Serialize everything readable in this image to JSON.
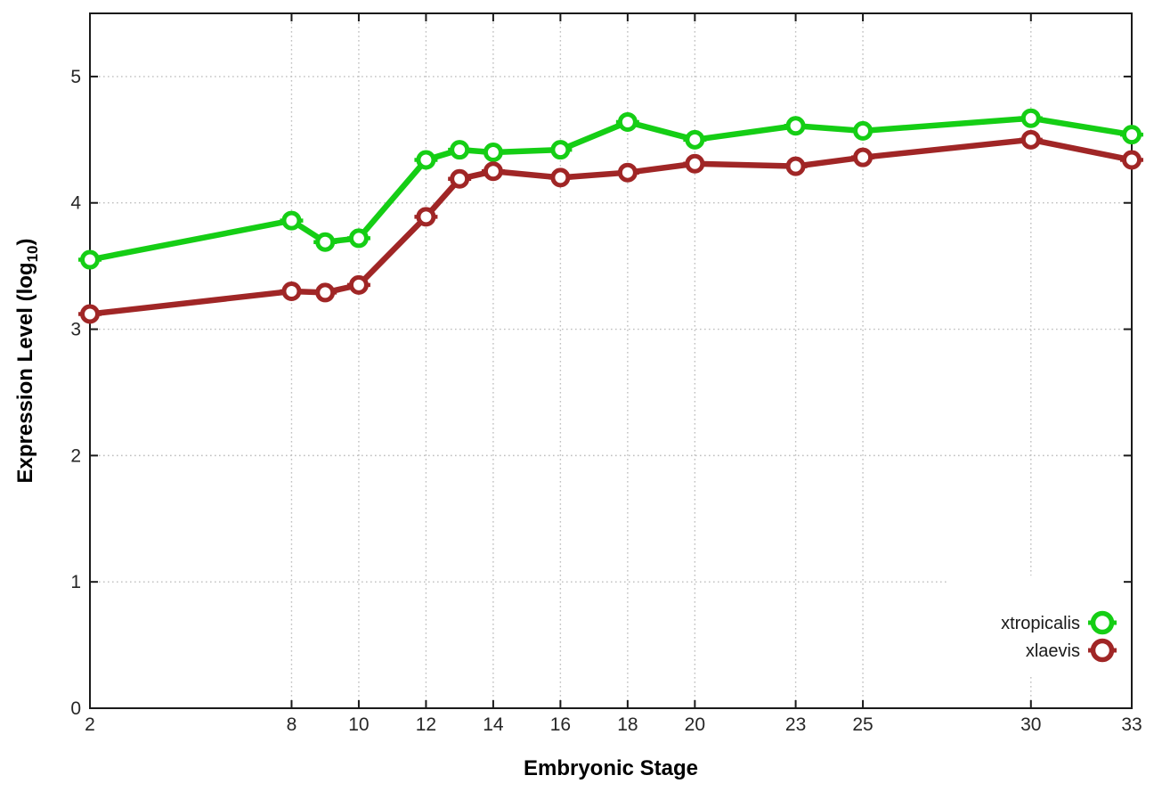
{
  "chart_data": {
    "type": "line",
    "title": "",
    "xlabel": "Embryonic Stage",
    "ylabel": {
      "text": "Expression Level (log10)",
      "prefix": "Expression Level (log",
      "sub": "10",
      "suffix": ")"
    },
    "xlim": [
      2,
      33
    ],
    "ylim": [
      0,
      5.5
    ],
    "x_ticks": [
      2,
      8,
      10,
      12,
      14,
      16,
      18,
      20,
      23,
      25,
      30,
      33
    ],
    "y_ticks": [
      0,
      1,
      2,
      3,
      4,
      5
    ],
    "grid": true,
    "legend_position": "bottom-right",
    "x": [
      2,
      8,
      9,
      10,
      12,
      13,
      14,
      16,
      18,
      20,
      23,
      25,
      30,
      33
    ],
    "series": [
      {
        "name": "xtropicalis",
        "color": "#15CE15",
        "values": [
          3.55,
          3.86,
          3.69,
          3.72,
          4.34,
          4.42,
          4.4,
          4.42,
          4.64,
          4.5,
          4.61,
          4.57,
          4.67,
          4.54
        ]
      },
      {
        "name": "xlaevis",
        "color": "#A02626",
        "values": [
          3.12,
          3.3,
          3.29,
          3.35,
          3.89,
          4.19,
          4.25,
          4.2,
          4.24,
          4.31,
          4.29,
          4.36,
          4.5,
          4.34
        ]
      }
    ],
    "colors": {
      "axis": "#1a1a1a",
      "grid": "#bfbfbf",
      "tick_text": "#262626"
    }
  }
}
